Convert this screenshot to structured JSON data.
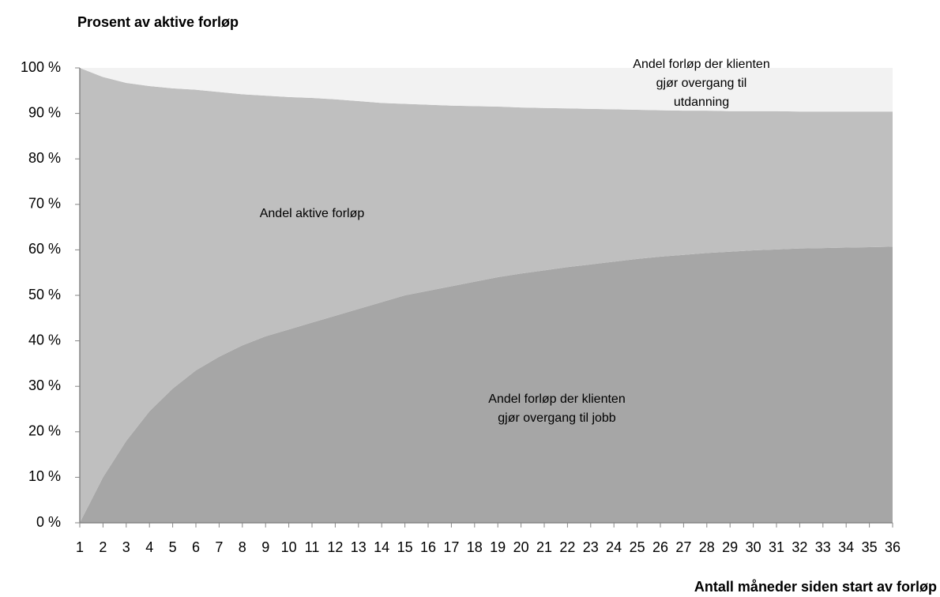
{
  "chart_data": {
    "type": "stacked_area",
    "y_axis_title": "Prosent av aktive forløp",
    "x_axis_title": "Antall måneder siden start av forløp",
    "x": [
      1,
      2,
      3,
      4,
      5,
      6,
      7,
      8,
      9,
      10,
      11,
      12,
      13,
      14,
      15,
      16,
      17,
      18,
      19,
      20,
      21,
      22,
      23,
      24,
      25,
      26,
      27,
      28,
      29,
      30,
      31,
      32,
      33,
      34,
      35,
      36
    ],
    "xlim": [
      1,
      36
    ],
    "ylim": [
      0,
      100
    ],
    "yticks": [
      {
        "value": 0,
        "label": "0 %"
      },
      {
        "value": 10,
        "label": "10 %"
      },
      {
        "value": 20,
        "label": "20 %"
      },
      {
        "value": 30,
        "label": "30 %"
      },
      {
        "value": 40,
        "label": "40 %"
      },
      {
        "value": 50,
        "label": "50 %"
      },
      {
        "value": 60,
        "label": "60 %"
      },
      {
        "value": 70,
        "label": "70 %"
      },
      {
        "value": 80,
        "label": "80 %"
      },
      {
        "value": 90,
        "label": "90 %"
      },
      {
        "value": 100,
        "label": "100 %"
      }
    ],
    "grid": false,
    "series": [
      {
        "name": "Andel forløp der klienten gjør overgang til jobb",
        "color": "#a6a6a6",
        "values": [
          0,
          10,
          18,
          24.5,
          29.5,
          33.5,
          36.5,
          39,
          41,
          42.5,
          44,
          45.5,
          47,
          48.5,
          50,
          51,
          52,
          53,
          54,
          54.8,
          55.5,
          56.2,
          56.8,
          57.4,
          58,
          58.5,
          58.9,
          59.3,
          59.6,
          59.9,
          60.1,
          60.3,
          60.4,
          60.5,
          60.6,
          60.7
        ]
      },
      {
        "name": "Andel aktive forløp",
        "color": "#bfbfbf",
        "values": [
          100,
          88,
          78.7,
          71.5,
          66,
          61.7,
          58.2,
          55.2,
          52.9,
          51.1,
          49.4,
          47.6,
          45.7,
          43.8,
          42.1,
          40.9,
          39.7,
          38.6,
          37.5,
          36.5,
          35.7,
          34.9,
          34.2,
          33.5,
          32.8,
          32.2,
          31.7,
          31.3,
          30.9,
          30.6,
          30.4,
          30.1,
          30,
          29.9,
          29.8,
          29.7
        ]
      },
      {
        "name": "Andel forløp der klienten gjør overgang til utdanning",
        "color": "#f2f2f2",
        "values": [
          0,
          2,
          3.3,
          4,
          4.5,
          4.8,
          5.3,
          5.8,
          6.1,
          6.4,
          6.6,
          6.9,
          7.3,
          7.7,
          7.9,
          8.1,
          8.3,
          8.4,
          8.5,
          8.7,
          8.8,
          8.9,
          9,
          9.1,
          9.2,
          9.3,
          9.4,
          9.4,
          9.5,
          9.5,
          9.5,
          9.6,
          9.6,
          9.6,
          9.6,
          9.6
        ]
      }
    ]
  }
}
